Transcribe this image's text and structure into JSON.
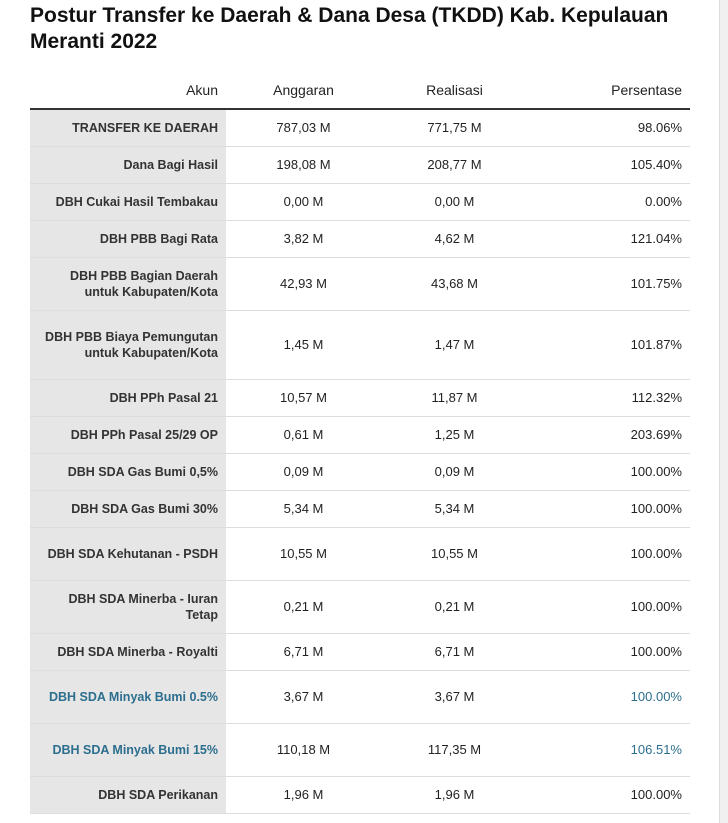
{
  "title": "Postur Transfer ke Daerah & Dana Desa (TKDD) Kab. Kepulauan Meranti 2022",
  "chart_data": {
    "type": "table",
    "columns": [
      "Akun",
      "Anggaran",
      "Realisasi",
      "Persentase"
    ],
    "rows": [
      {
        "akun": "TRANSFER KE DAERAH",
        "anggaran": "787,03 M",
        "realisasi": "771,75 M",
        "persentase": "98.06%",
        "highlight": false
      },
      {
        "akun": "Dana Bagi Hasil",
        "anggaran": "198,08 M",
        "realisasi": "208,77 M",
        "persentase": "105.40%",
        "highlight": false
      },
      {
        "akun": "DBH Cukai Hasil Tembakau",
        "anggaran": "0,00 M",
        "realisasi": "0,00 M",
        "persentase": "0.00%",
        "highlight": false
      },
      {
        "akun": "DBH PBB Bagi Rata",
        "anggaran": "3,82 M",
        "realisasi": "4,62 M",
        "persentase": "121.04%",
        "highlight": false
      },
      {
        "akun": "DBH PBB Bagian Daerah untuk Kabupaten/Kota",
        "anggaran": "42,93 M",
        "realisasi": "43,68 M",
        "persentase": "101.75%",
        "highlight": false
      },
      {
        "akun": "DBH PBB Biaya Pemungutan untuk Kabupaten/Kota",
        "anggaran": "1,45 M",
        "realisasi": "1,47 M",
        "persentase": "101.87%",
        "highlight": false
      },
      {
        "akun": "DBH PPh Pasal 21",
        "anggaran": "10,57 M",
        "realisasi": "11,87 M",
        "persentase": "112.32%",
        "highlight": false
      },
      {
        "akun": "DBH PPh Pasal 25/29 OP",
        "anggaran": "0,61 M",
        "realisasi": "1,25 M",
        "persentase": "203.69%",
        "highlight": false
      },
      {
        "akun": "DBH SDA Gas Bumi 0,5%",
        "anggaran": "0,09 M",
        "realisasi": "0,09 M",
        "persentase": "100.00%",
        "highlight": false
      },
      {
        "akun": "DBH SDA Gas Bumi 30%",
        "anggaran": "5,34 M",
        "realisasi": "5,34 M",
        "persentase": "100.00%",
        "highlight": false
      },
      {
        "akun": "DBH SDA Kehutanan - PSDH",
        "anggaran": "10,55 M",
        "realisasi": "10,55 M",
        "persentase": "100.00%",
        "highlight": false
      },
      {
        "akun": "DBH SDA Minerba - Iuran Tetap",
        "anggaran": "0,21 M",
        "realisasi": "0,21 M",
        "persentase": "100.00%",
        "highlight": false
      },
      {
        "akun": "DBH SDA Minerba - Royalti",
        "anggaran": "6,71 M",
        "realisasi": "6,71 M",
        "persentase": "100.00%",
        "highlight": false
      },
      {
        "akun": "DBH SDA Minyak Bumi 0.5%",
        "anggaran": "3,67 M",
        "realisasi": "3,67 M",
        "persentase": "100.00%",
        "highlight": true
      },
      {
        "akun": "DBH SDA Minyak Bumi 15%",
        "anggaran": "110,18 M",
        "realisasi": "117,35 M",
        "persentase": "106.51%",
        "highlight": true
      },
      {
        "akun": "DBH SDA Perikanan",
        "anggaran": "1,96 M",
        "realisasi": "1,96 M",
        "persentase": "100.00%",
        "highlight": false
      }
    ]
  }
}
